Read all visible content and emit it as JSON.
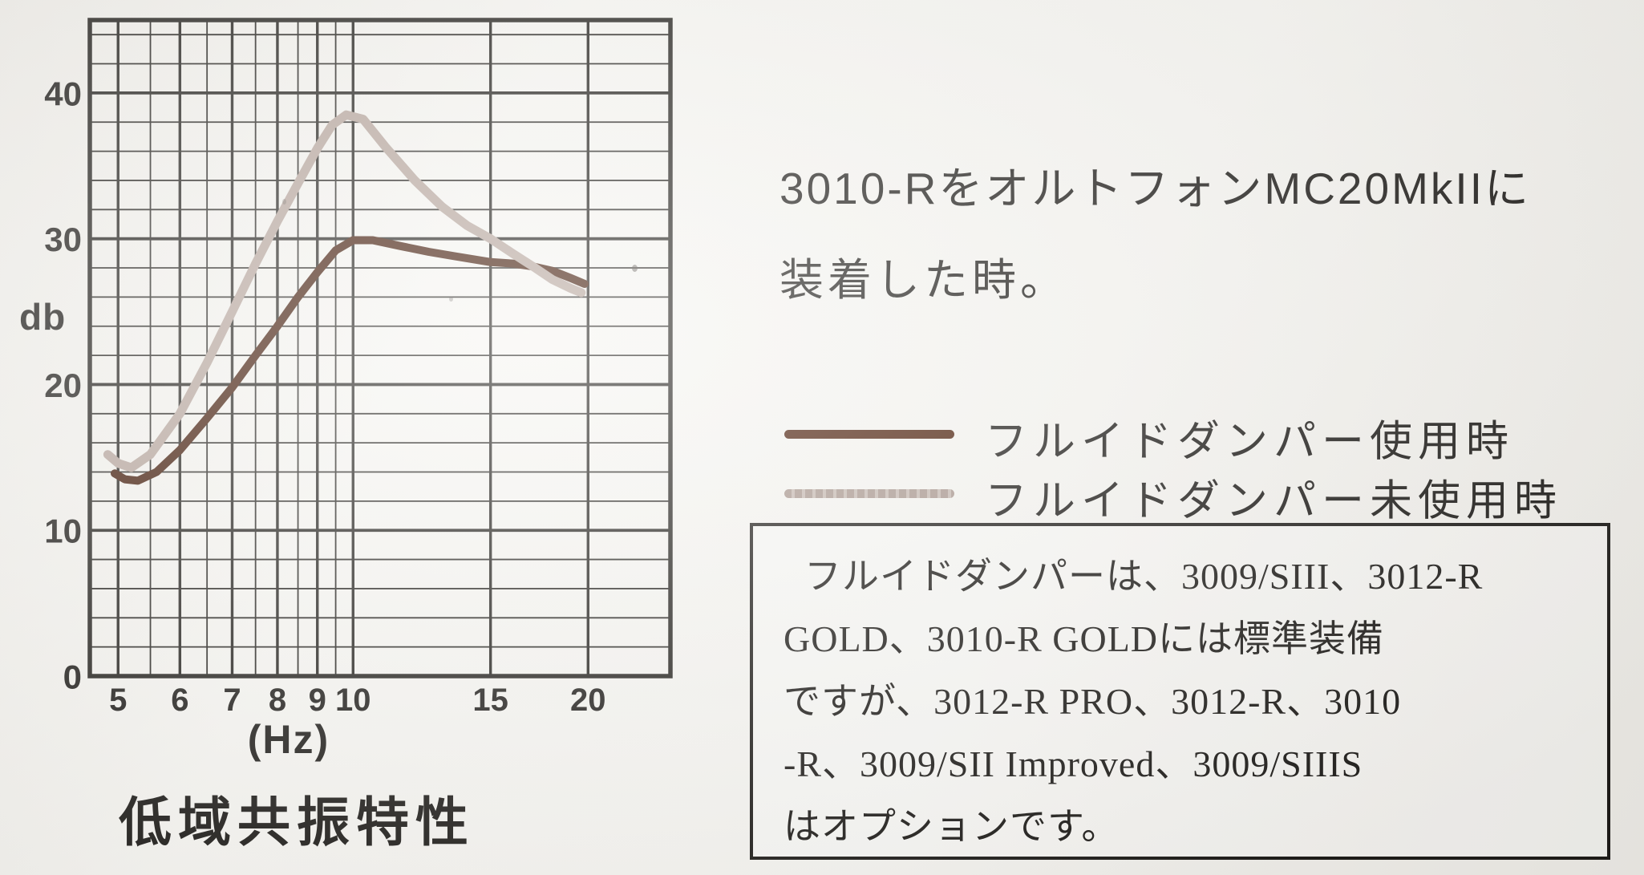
{
  "page": {
    "background": "#f4f2ee",
    "ink": "#1e1c19",
    "grid_ink": "#24221e"
  },
  "chart_data": {
    "type": "line",
    "title": "低域共振特性",
    "xlabel": "(Hz)",
    "ylabel": "db",
    "x_scale": "log",
    "xlim": [
      4.6,
      25.5
    ],
    "ylim": [
      0,
      45
    ],
    "x_ticks_major": [
      5,
      6,
      7,
      8,
      9,
      10,
      15,
      20
    ],
    "x_tick_labels": [
      "5",
      "6",
      "7",
      "8",
      "9",
      "10",
      "15",
      "20"
    ],
    "x_ticks_minor": [
      5.5,
      6.5,
      7.5,
      8.5,
      9.5
    ],
    "y_ticks": [
      0,
      10,
      20,
      30,
      40
    ],
    "y_minor_step": 2,
    "grid": true,
    "legend_position": "right",
    "series": [
      {
        "name": "フルイドダンパー使用時",
        "color": "#401806",
        "x": [
          4.95,
          5.1,
          5.3,
          5.6,
          6.0,
          6.5,
          7.0,
          7.5,
          8.0,
          8.5,
          9.0,
          9.5,
          10.0,
          10.6,
          11.5,
          12.5,
          13.5,
          15.0,
          16.0,
          17.0,
          18.0,
          19.0,
          19.8
        ],
        "y": [
          13.9,
          13.5,
          13.4,
          14.0,
          15.5,
          17.7,
          19.8,
          22.0,
          24.0,
          26.0,
          27.7,
          29.2,
          29.9,
          29.9,
          29.5,
          29.1,
          28.8,
          28.4,
          28.3,
          28.1,
          27.8,
          27.3,
          26.9
        ]
      },
      {
        "name": "フルイドダンパー未使用時",
        "color": "#b5a49b",
        "x": [
          4.85,
          5.0,
          5.2,
          5.5,
          6.0,
          6.5,
          7.0,
          7.5,
          8.0,
          8.5,
          9.0,
          9.4,
          9.8,
          10.3,
          11.0,
          12.0,
          13.0,
          14.0,
          15.0,
          16.0,
          17.0,
          18.0,
          19.0,
          19.6
        ],
        "y": [
          15.2,
          14.6,
          14.3,
          15.2,
          18.0,
          21.5,
          25.0,
          28.3,
          31.2,
          33.8,
          36.2,
          37.8,
          38.5,
          38.2,
          36.3,
          34.0,
          32.2,
          30.9,
          30.0,
          29.0,
          28.1,
          27.2,
          26.6,
          26.3
        ]
      }
    ]
  },
  "caption": {
    "line1": "3010-RをオルトフォンMC20MkIIに",
    "line2": "装着した時。"
  },
  "legend": {
    "items": [
      {
        "label": "フルイドダンパー使用時",
        "color": "#4a1d08",
        "style": "solid"
      },
      {
        "label": "フルイドダンパー未使用時",
        "color": "#b09e95",
        "style": "stippled"
      }
    ]
  },
  "note_box": {
    "lines": [
      "フルイドダンパーは、3009/SIII、3012-R",
      "GOLD、3010-R GOLDには標準装備",
      "ですが、3012-R PRO、3012-R、3010",
      "-R、3009/SII Improved、3009/SIIIS",
      "はオプションです。"
    ]
  }
}
